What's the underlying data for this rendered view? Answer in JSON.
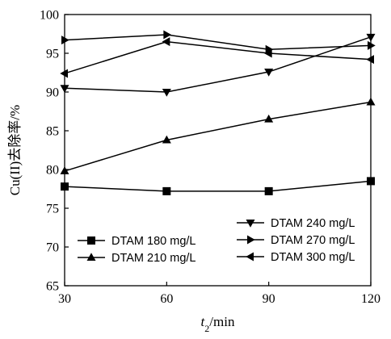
{
  "chart_data": {
    "type": "line",
    "x": [
      30,
      60,
      90,
      120
    ],
    "xlim": [
      30,
      120
    ],
    "ylim": [
      65,
      100
    ],
    "xticks": [
      30,
      60,
      90,
      120
    ],
    "yticks": [
      65,
      70,
      75,
      80,
      85,
      90,
      95,
      100
    ],
    "xlabel": {
      "italic": "t",
      "sub": "2",
      "rest": "/min"
    },
    "ylabel": "Cu(II)去除率/%",
    "grid": false,
    "legend_position": "bottom-right",
    "series": [
      {
        "name": "DTAM 180 mg/L",
        "marker": "square",
        "values": [
          77.8,
          77.2,
          77.2,
          78.5
        ]
      },
      {
        "name": "DTAM 210 mg/L",
        "marker": "triangle-up",
        "values": [
          79.8,
          83.8,
          86.5,
          88.7
        ]
      },
      {
        "name": "DTAM 240 mg/L",
        "marker": "triangle-down",
        "values": [
          90.5,
          90.0,
          92.6,
          97.1
        ]
      },
      {
        "name": "DTAM 270 mg/L",
        "marker": "triangle-right",
        "values": [
          96.7,
          97.4,
          95.5,
          96.0
        ]
      },
      {
        "name": "DTAM 300 mg/L",
        "marker": "triangle-left",
        "values": [
          92.4,
          96.5,
          95.0,
          94.2
        ]
      }
    ],
    "legend_columns": [
      [
        "DTAM 180 mg/L",
        "DTAM 210 mg/L"
      ],
      [
        "DTAM 240 mg/L",
        "DTAM 270 mg/L",
        "DTAM 300 mg/L"
      ]
    ]
  }
}
